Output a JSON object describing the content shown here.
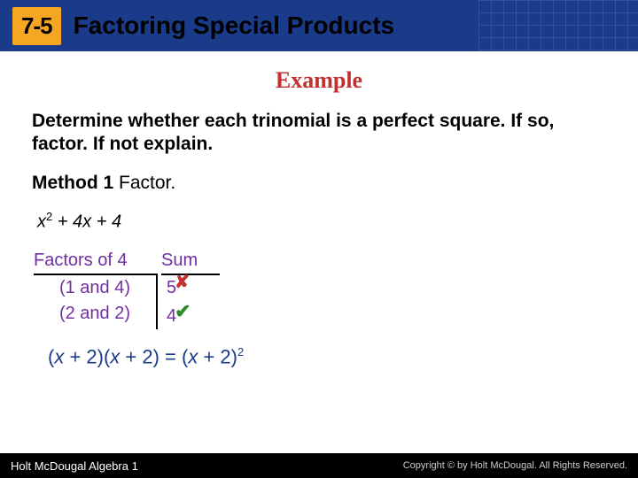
{
  "header": {
    "section_number": "7-5",
    "title": "Factoring Special Products",
    "bg_color": "#1a3a8a",
    "badge_bg": "#f5a623"
  },
  "example": {
    "label": "Example",
    "label_color": "#c23030",
    "prompt": "Determine whether each trinomial is a perfect square. If so, factor. If not explain.",
    "method_label": "Method 1",
    "method_text": "Factor.",
    "expression_parts": {
      "term1_var": "x",
      "term1_exp": "2",
      "mid": " + 4",
      "mid_var": "x",
      "tail": " + 4"
    }
  },
  "factor_table": {
    "header_left": "Factors of 4",
    "header_right": "Sum",
    "text_color": "#7030a0",
    "rows": [
      {
        "factors": "(1 and 4)",
        "sum": "5",
        "mark": "x",
        "mark_color": "#c23030"
      },
      {
        "factors": "(2 and 2)",
        "sum": "4",
        "mark": "check",
        "mark_color": "#2e8b2e"
      }
    ]
  },
  "result": {
    "lhs_open": "(",
    "var1": "x",
    "mid1": " + 2)(",
    "var2": "x",
    "mid2": " + 2) = (",
    "var3": "x",
    "tail": " + 2)",
    "exp": "2",
    "color": "#1a3a8a"
  },
  "footer": {
    "left": "Holt McDougal Algebra 1",
    "right": "Copyright © by Holt McDougal. All Rights Reserved."
  }
}
